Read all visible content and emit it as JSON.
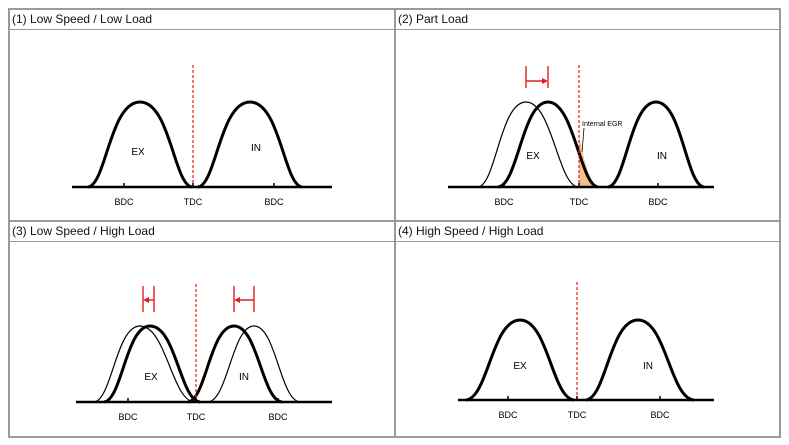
{
  "panels": [
    {
      "title": "(1) Low Speed / Low Load",
      "ex_label": "EX",
      "in_label": "IN",
      "ticks": [
        "BDC",
        "TDC",
        "BDC"
      ]
    },
    {
      "title": "(2) Part Load",
      "ex_label": "EX",
      "in_label": "IN",
      "ticks": [
        "BDC",
        "TDC",
        "BDC"
      ],
      "annotation": "Internal EGR"
    },
    {
      "title": "(3) Low Speed / High Load",
      "ex_label": "EX",
      "in_label": "IN",
      "ticks": [
        "BDC",
        "TDC",
        "BDC"
      ]
    },
    {
      "title": "(4) High Speed / High Load",
      "ex_label": "EX",
      "in_label": "IN",
      "ticks": [
        "BDC",
        "TDC",
        "BDC"
      ]
    }
  ],
  "colors": {
    "curve": "#000000",
    "tdc_line": "#e02020",
    "shift_arrow": "#e02020",
    "egr_fill": "#f5c08a",
    "border": "#9a9a9a"
  }
}
